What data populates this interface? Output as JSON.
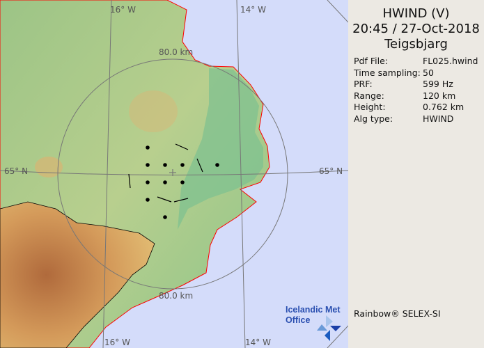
{
  "header": {
    "product": "HWIND (V)",
    "datetime": "20:45 / 27-Oct-2018",
    "site": "Teigsbjarg"
  },
  "info": [
    {
      "label": "Pdf File:",
      "value": "FL025.hwind"
    },
    {
      "label": "Time sampling:",
      "value": "50"
    },
    {
      "label": "PRF:",
      "value": "599 Hz"
    },
    {
      "label": "Range:",
      "value": "120 km"
    },
    {
      "label": "Height:",
      "value": "0.762 km"
    },
    {
      "label": "Alg type:",
      "value": "HWIND"
    }
  ],
  "map": {
    "lon_labels": [
      "16° W",
      "14° W",
      "16° W",
      "14° W"
    ],
    "lat_labels": [
      "65° N",
      "65° N"
    ],
    "range_labels": [
      "80.0 km",
      "80.0 km"
    ],
    "colors": {
      "sea": "#d4dcfa",
      "coast": "#ff0000",
      "grid": "#777777"
    }
  },
  "logo": {
    "line1": "Icelandic Met",
    "line2": "Office"
  },
  "credit": "Rainbow® SELEX-SI"
}
